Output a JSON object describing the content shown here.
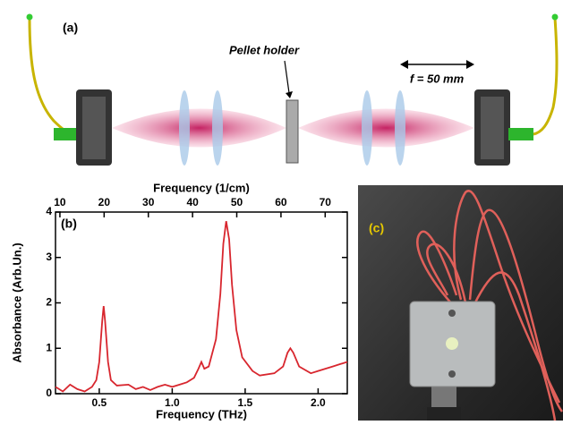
{
  "panel_a": {
    "label": "(a)",
    "pellet_label": "Pellet holder",
    "focal_label": "f = 50 mm"
  },
  "chart_data": {
    "type": "line",
    "annotation": "(b)",
    "x_label": "Frequency (THz)",
    "x2_label": "Frequency (1/cm)",
    "y_label": "Absorbance (Arb.Un.)",
    "x": [
      0.2,
      0.25,
      0.3,
      0.35,
      0.4,
      0.45,
      0.48,
      0.5,
      0.52,
      0.53,
      0.54,
      0.56,
      0.58,
      0.62,
      0.7,
      0.75,
      0.8,
      0.85,
      0.9,
      0.95,
      1.0,
      1.05,
      1.1,
      1.15,
      1.18,
      1.2,
      1.22,
      1.25,
      1.3,
      1.33,
      1.35,
      1.37,
      1.39,
      1.41,
      1.44,
      1.48,
      1.55,
      1.6,
      1.7,
      1.76,
      1.79,
      1.81,
      1.83,
      1.87,
      1.95,
      2.0,
      2.05,
      2.1,
      2.15,
      2.2
    ],
    "series": [
      {
        "name": "Absorbance",
        "color": "#d8262e",
        "values": [
          0.15,
          0.05,
          0.2,
          0.1,
          0.05,
          0.15,
          0.3,
          0.7,
          1.6,
          1.93,
          1.6,
          0.7,
          0.3,
          0.18,
          0.2,
          0.1,
          0.15,
          0.08,
          0.15,
          0.2,
          0.15,
          0.2,
          0.25,
          0.35,
          0.55,
          0.7,
          0.55,
          0.6,
          1.2,
          2.2,
          3.3,
          3.8,
          3.4,
          2.4,
          1.4,
          0.8,
          0.5,
          0.4,
          0.45,
          0.6,
          0.9,
          1.0,
          0.9,
          0.6,
          0.45,
          0.5,
          0.55,
          0.6,
          0.65,
          0.7
        ]
      }
    ],
    "xlim": [
      0.2,
      2.2
    ],
    "xticks": [
      0.5,
      {
        "value": 1.0,
        "label": "1.0"
      },
      1.5,
      {
        "value": 2.0,
        "label": "2.0"
      }
    ],
    "x2lim": [
      9,
      75
    ],
    "x2ticks": [
      10,
      20,
      30,
      40,
      50,
      60,
      70
    ],
    "ylim": [
      0,
      4
    ],
    "yticks": [
      0,
      1,
      2,
      3,
      4
    ]
  },
  "panel_c": {
    "label": "(c)"
  }
}
